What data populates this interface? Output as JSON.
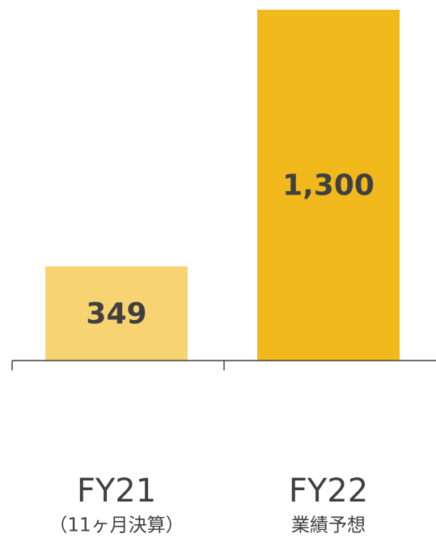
{
  "chart_data": {
    "type": "bar",
    "categories": [
      [
        "FY21",
        "（11ヶ月決算）"
      ],
      [
        "FY22",
        "業績予想"
      ]
    ],
    "values": [
      349,
      1300
    ],
    "value_labels": [
      "349",
      "1,300"
    ],
    "colors": [
      "#f7d372",
      "#f2b91c"
    ]
  }
}
